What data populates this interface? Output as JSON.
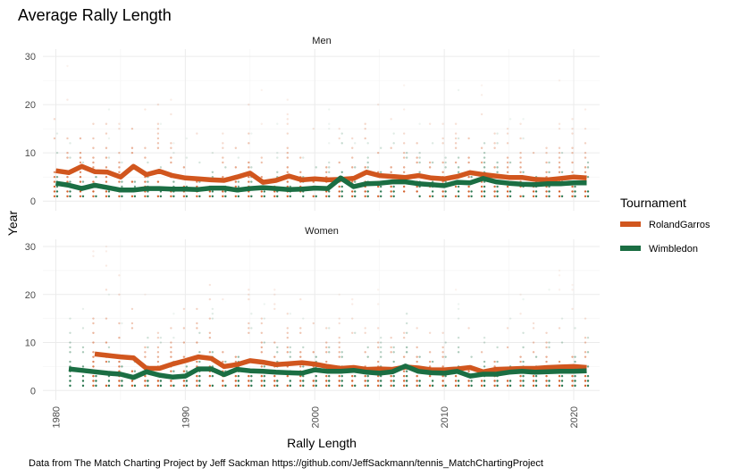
{
  "chart_data": {
    "type": "line",
    "title": "Average Rally Length",
    "xlabel": "Rally Length",
    "ylabel": "Year",
    "caption": "Data from The Match Charting Project by Jeff Sackman https://github.com/JeffSackmann/tennis_MatchChartingProject",
    "xlim": [
      1979,
      2022
    ],
    "ylim": [
      -2,
      31.5
    ],
    "x_ticks": [
      1980,
      1990,
      2000,
      2010,
      2020
    ],
    "y_ticks": [
      0,
      10,
      20,
      30
    ],
    "grid": true,
    "legend": {
      "title": "Tournament",
      "position": "right",
      "entries": [
        {
          "name": "RolandGarros",
          "color": "#D1561E"
        },
        {
          "name": "Wimbledon",
          "color": "#1B6E43"
        }
      ]
    },
    "panels": [
      {
        "name": "Men",
        "series": [
          {
            "name": "RolandGarros",
            "color": "#D1561E",
            "x": [
              1980,
              1981,
              1982,
              1983,
              1984,
              1985,
              1986,
              1987,
              1988,
              1989,
              1990,
              1991,
              1992,
              1993,
              1994,
              1995,
              1996,
              1997,
              1998,
              1999,
              2000,
              2001,
              2002,
              2003,
              2004,
              2005,
              2006,
              2007,
              2008,
              2009,
              2010,
              2011,
              2012,
              2013,
              2014,
              2015,
              2016,
              2017,
              2018,
              2019,
              2020,
              2021
            ],
            "y": [
              6.3,
              5.9,
              7.2,
              6.1,
              6.0,
              5.0,
              7.2,
              5.5,
              6.2,
              5.3,
              4.8,
              4.6,
              4.4,
              4.3,
              5.0,
              5.8,
              3.9,
              4.3,
              5.2,
              4.4,
              4.6,
              4.4,
              4.5,
              4.7,
              6.0,
              5.3,
              5.1,
              4.9,
              5.3,
              4.8,
              4.6,
              5.1,
              5.9,
              5.5,
              5.2,
              4.9,
              4.9,
              4.5,
              4.4,
              4.7,
              5.0,
              4.8
            ]
          },
          {
            "name": "Wimbledon",
            "color": "#1B6E43",
            "x": [
              1980,
              1981,
              1982,
              1983,
              1984,
              1985,
              1986,
              1987,
              1988,
              1989,
              1990,
              1991,
              1992,
              1993,
              1994,
              1995,
              1996,
              1997,
              1998,
              1999,
              2000,
              2001,
              2002,
              2003,
              2004,
              2005,
              2006,
              2007,
              2008,
              2009,
              2010,
              2011,
              2012,
              2013,
              2014,
              2015,
              2016,
              2017,
              2018,
              2019,
              2020,
              2021
            ],
            "y": [
              3.7,
              3.3,
              2.6,
              3.3,
              2.8,
              2.3,
              2.3,
              2.6,
              2.6,
              2.5,
              2.5,
              2.4,
              2.7,
              2.7,
              2.3,
              2.6,
              2.8,
              2.6,
              2.4,
              2.5,
              2.7,
              2.6,
              4.8,
              3.0,
              3.6,
              3.7,
              4.0,
              4.0,
              3.6,
              3.4,
              3.2,
              3.9,
              3.8,
              4.7,
              4.0,
              3.7,
              3.5,
              3.4,
              3.6,
              3.6,
              3.8,
              3.8
            ]
          }
        ]
      },
      {
        "name": "Women",
        "series": [
          {
            "name": "RolandGarros",
            "color": "#D1561E",
            "x": [
              1983,
              1984,
              1985,
              1986,
              1987,
              1988,
              1989,
              1990,
              1991,
              1992,
              1993,
              1994,
              1995,
              1996,
              1997,
              1998,
              1999,
              2000,
              2001,
              2002,
              2003,
              2004,
              2005,
              2006,
              2007,
              2008,
              2009,
              2010,
              2011,
              2012,
              2013,
              2014,
              2015,
              2016,
              2017,
              2018,
              2019,
              2020,
              2021
            ],
            "y": [
              7.6,
              7.3,
              7.0,
              6.8,
              4.6,
              4.6,
              5.5,
              6.2,
              7.0,
              6.7,
              5.0,
              5.4,
              6.2,
              5.9,
              5.4,
              5.6,
              5.8,
              5.5,
              5.0,
              4.6,
              4.8,
              4.4,
              4.5,
              4.4,
              4.9,
              4.7,
              4.3,
              4.3,
              4.5,
              4.8,
              3.9,
              4.4,
              4.5,
              4.6,
              4.6,
              4.8,
              4.9,
              5.0,
              4.8
            ]
          },
          {
            "name": "Wimbledon",
            "color": "#1B6E43",
            "x": [
              1981,
              1982,
              1983,
              1984,
              1985,
              1986,
              1987,
              1988,
              1989,
              1990,
              1991,
              1992,
              1993,
              1994,
              1995,
              1996,
              1997,
              1998,
              1999,
              2000,
              2001,
              2002,
              2003,
              2004,
              2005,
              2006,
              2007,
              2008,
              2009,
              2010,
              2011,
              2012,
              2013,
              2014,
              2015,
              2016,
              2017,
              2018,
              2019,
              2020,
              2021
            ],
            "y": [
              4.5,
              4.2,
              3.9,
              3.6,
              3.4,
              2.7,
              3.9,
              3.2,
              2.8,
              3.0,
              4.5,
              4.5,
              3.3,
              4.4,
              4.1,
              4.0,
              3.8,
              3.7,
              3.6,
              4.3,
              4.0,
              4.0,
              4.2,
              3.8,
              3.6,
              3.9,
              5.1,
              4.0,
              3.7,
              3.6,
              4.0,
              3.0,
              3.4,
              3.4,
              3.8,
              4.0,
              3.8,
              3.9,
              4.0,
              4.0,
              4.1
            ]
          }
        ]
      }
    ]
  }
}
